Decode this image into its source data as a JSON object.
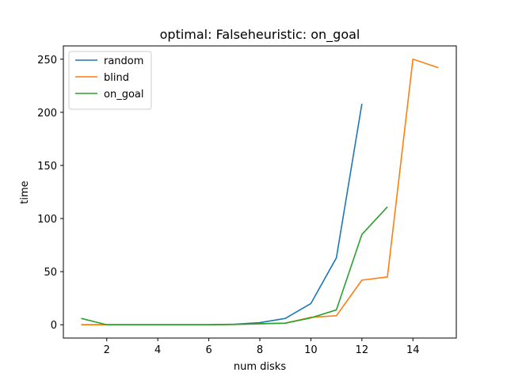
{
  "chart_data": {
    "type": "line",
    "title": "optimal: Falseheuristic: on_goal",
    "xlabel": "num disks",
    "ylabel": "time",
    "xlim": [
      0.3,
      15.7
    ],
    "ylim": [
      -12.5,
      262.5
    ],
    "xticks": [
      2,
      4,
      6,
      8,
      10,
      12,
      14
    ],
    "yticks": [
      0,
      50,
      100,
      150,
      200,
      250
    ],
    "grid": false,
    "legend_position": "top-left",
    "series": [
      {
        "name": "random",
        "color": "#1f77b4",
        "x": [
          1,
          2,
          3,
          4,
          5,
          6,
          7,
          8,
          9,
          10,
          11,
          12
        ],
        "y": [
          0,
          0,
          0,
          0,
          0,
          0,
          0.5,
          2,
          6,
          20,
          63,
          208
        ]
      },
      {
        "name": "blind",
        "color": "#ff7f0e",
        "x": [
          1,
          2,
          3,
          4,
          5,
          6,
          7,
          8,
          9,
          10,
          11,
          12,
          13,
          14,
          15
        ],
        "y": [
          0,
          0,
          0,
          0,
          0,
          0,
          0.3,
          1,
          1.5,
          7,
          8.5,
          42,
          45,
          250,
          242
        ]
      },
      {
        "name": "on_goal",
        "color": "#2ca02c",
        "x": [
          1,
          2,
          3,
          4,
          5,
          6,
          7,
          8,
          9,
          10,
          11,
          12,
          13
        ],
        "y": [
          6,
          0,
          0,
          0,
          0,
          0,
          0.3,
          1,
          1.5,
          6.5,
          14,
          85,
          111
        ]
      }
    ]
  }
}
